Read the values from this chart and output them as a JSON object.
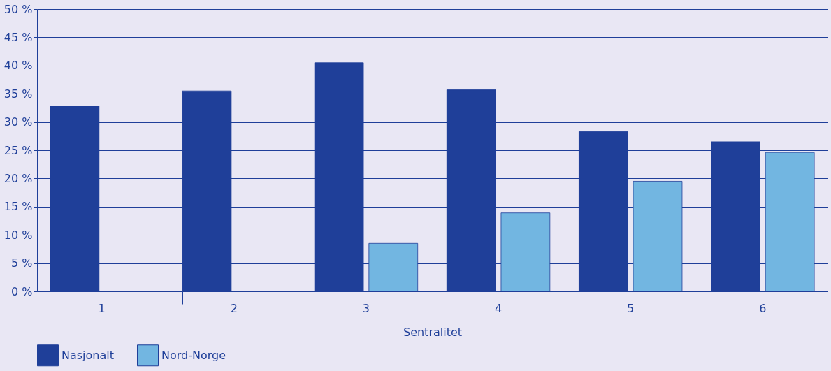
{
  "chart_data": {
    "type": "bar",
    "xlabel": "Sentralitet",
    "categories": [
      "1",
      "2",
      "3",
      "4",
      "5",
      "6"
    ],
    "series": [
      {
        "name": "Nasjonalt",
        "color": "#1f3f99",
        "values": [
          32.8,
          35.5,
          40.5,
          35.7,
          28.3,
          26.5
        ]
      },
      {
        "name": "Nord-Norge",
        "color": "#72b6e1",
        "values": [
          null,
          null,
          8.5,
          13.9,
          19.5,
          24.6
        ]
      }
    ],
    "ylim": [
      0,
      50
    ],
    "yticks": [
      {
        "value": 0,
        "label": "0 %"
      },
      {
        "value": 5,
        "label": "5 %"
      },
      {
        "value": 10,
        "label": "10 %"
      },
      {
        "value": 15,
        "label": "15 %"
      },
      {
        "value": 20,
        "label": "20 %"
      },
      {
        "value": 25,
        "label": "25 %"
      },
      {
        "value": 30,
        "label": "30 %"
      },
      {
        "value": 35,
        "label": "35 %"
      },
      {
        "value": 40,
        "label": "40 %"
      },
      {
        "value": 45,
        "label": "45 %"
      },
      {
        "value": 50,
        "label": "50 %"
      }
    ],
    "grid": "y",
    "legend": "bottom left"
  }
}
